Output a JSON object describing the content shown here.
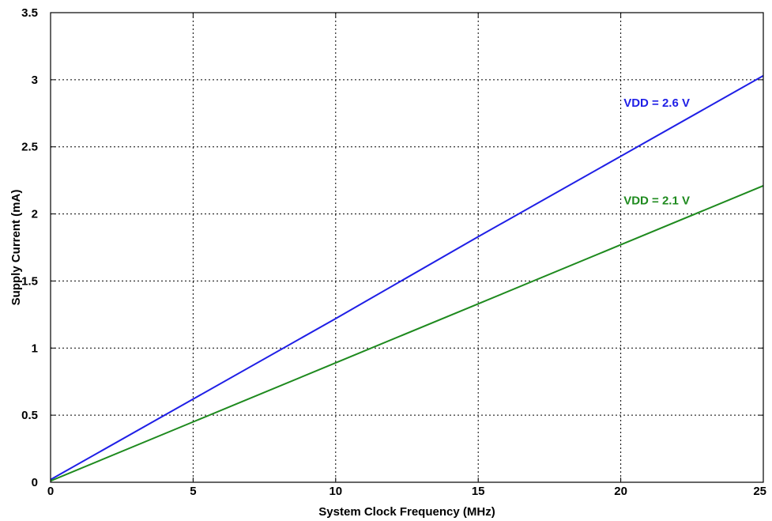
{
  "chart_data": {
    "type": "line",
    "xlabel": "System Clock Frequency (MHz)",
    "ylabel": "Supply Current (mA)",
    "xlim": [
      0,
      25
    ],
    "ylim": [
      0,
      3.5
    ],
    "grid": true,
    "x_ticks": [
      0,
      5,
      10,
      15,
      20,
      25
    ],
    "y_ticks": [
      0,
      0.5,
      1,
      1.5,
      2,
      2.5,
      3,
      3.5
    ],
    "x_tick_labels": [
      "0",
      "5",
      "10",
      "15",
      "20",
      "25"
    ],
    "y_tick_labels": [
      "0",
      "0.5",
      "1",
      "1.5",
      "2",
      "2.5",
      "3",
      "3.5"
    ],
    "series": [
      {
        "name": "VDD = 2.6 V",
        "color": "#1f1fe6",
        "x": [
          0,
          5,
          10,
          15,
          20,
          25
        ],
        "y": [
          0.02,
          0.62,
          1.22,
          1.83,
          2.43,
          3.03
        ]
      },
      {
        "name": "VDD = 2.1 V",
        "color": "#1e8a1e",
        "x": [
          0,
          5,
          10,
          15,
          20,
          25
        ],
        "y": [
          0.01,
          0.45,
          0.89,
          1.33,
          1.77,
          2.21
        ]
      }
    ],
    "annotations": [
      {
        "text": "VDD = 2.6 V",
        "x": 20.1,
        "y": 2.8,
        "color": "#1f1fe6"
      },
      {
        "text": "VDD = 2.1 V",
        "x": 20.1,
        "y": 2.07,
        "color": "#1e8a1e"
      }
    ]
  }
}
